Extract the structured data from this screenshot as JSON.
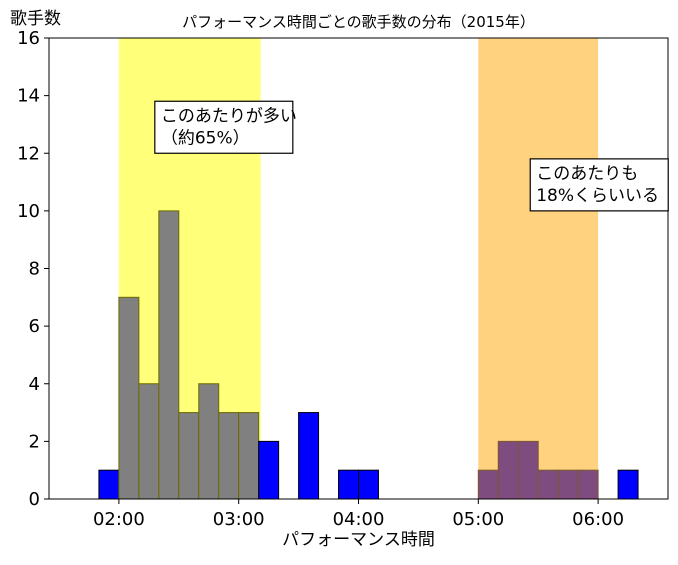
{
  "chart_data": {
    "type": "bar",
    "title": "パフォーマンス時間ごとの歌手数の分布（2015年）",
    "xlabel": "パフォーマンス時間",
    "ylabel": "歌手数",
    "x_unit": "minutes",
    "xlim": [
      85,
      395
    ],
    "ylim": [
      0,
      16
    ],
    "bin_width": 10,
    "x_ticks": [
      {
        "value": 120,
        "label": "02:00"
      },
      {
        "value": 180,
        "label": "03:00"
      },
      {
        "value": 240,
        "label": "04:00"
      },
      {
        "value": 300,
        "label": "05:00"
      },
      {
        "value": 360,
        "label": "06:00"
      }
    ],
    "y_ticks": [
      0,
      2,
      4,
      6,
      8,
      10,
      12,
      14,
      16
    ],
    "grid": false,
    "highlight_bands": [
      {
        "from": 120,
        "to": 191,
        "color": "#ffff7a"
      },
      {
        "from": 300,
        "to": 360,
        "color": "#ffd27f"
      }
    ],
    "series": [
      {
        "color": "#0000ff",
        "bins": [
          {
            "start": 110,
            "count": 1
          },
          {
            "start": 120,
            "count": 7
          },
          {
            "start": 130,
            "count": 4
          },
          {
            "start": 140,
            "count": 10
          },
          {
            "start": 150,
            "count": 3
          },
          {
            "start": 160,
            "count": 4
          },
          {
            "start": 170,
            "count": 3
          },
          {
            "start": 180,
            "count": 3
          },
          {
            "start": 190,
            "count": 2
          },
          {
            "start": 210,
            "count": 3
          },
          {
            "start": 230,
            "count": 1
          },
          {
            "start": 240,
            "count": 1
          },
          {
            "start": 300,
            "count": 1
          },
          {
            "start": 310,
            "count": 2
          },
          {
            "start": 320,
            "count": 2
          },
          {
            "start": 330,
            "count": 1
          },
          {
            "start": 340,
            "count": 1
          },
          {
            "start": 350,
            "count": 1
          },
          {
            "start": 370,
            "count": 1
          }
        ]
      }
    ],
    "annotations": [
      {
        "lines": [
          "このあたりが多い",
          "（約65%）"
        ],
        "x": 138,
        "y": 12.0
      },
      {
        "lines": [
          "このあたりも",
          "18%くらいいる"
        ],
        "x": 326,
        "y": 10.0
      }
    ]
  }
}
